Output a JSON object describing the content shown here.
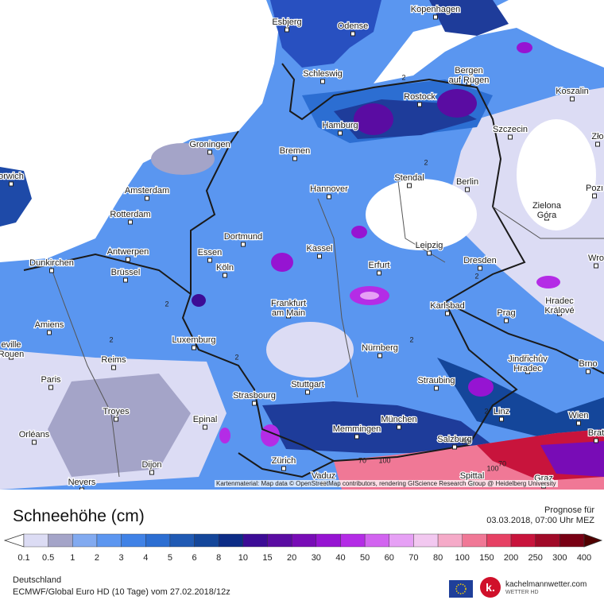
{
  "map": {
    "cities": [
      "Esbjerg",
      "Odense",
      "Kopenhagen",
      "Schleswig",
      [
        "Bergen",
        "auf Rügen"
      ],
      "Rostock",
      "Koszalin",
      "Hamburg",
      "Szczecin",
      "Zło",
      "Groningen",
      "Bremen",
      "orwich",
      "Amsterdam",
      "Hannover",
      "Stendal",
      "Berlin",
      "Pozı",
      "Rotterdam",
      [
        "Zielona",
        "Góra"
      ],
      "Dortmund",
      "Kassel",
      "Leipzig",
      "Antwerpen",
      "Essen",
      "Dunkirchen",
      "Wro",
      "Köln",
      "Erfurt",
      "Dresden",
      "Brüssel",
      [
        "Frankfurt",
        "am Main"
      ],
      "Karlsbad",
      [
        "Hradec",
        "Králové"
      ],
      "Amiens",
      "Prag",
      "Luxemburg",
      "Nürnberg",
      [
        "Jindřichův",
        "Hradec"
      ],
      "Brno",
      [
        "eville",
        "Rouen"
      ],
      "Reims",
      "Paris",
      "Stuttgart",
      "Straubing",
      "Strasbourg",
      "Troyes",
      "Epinal",
      "München",
      "Linz",
      "Wien",
      "Memmingen",
      "Brat",
      "Orléans",
      "Salzburg",
      "Zürich",
      "Dijon",
      "Vaduz",
      "Nevers",
      "Spittal",
      "Graz"
    ],
    "contour_labels": [
      "2",
      "2",
      "2",
      "2",
      "2",
      "2",
      "2",
      "2",
      "70",
      "100",
      "50",
      "100",
      "70"
    ],
    "attribution": "Kartenmaterial: Map data © OpenStreetMap contributors, rendering GIScience Research Group @ Heidelberg University"
  },
  "legend": {
    "title": "Schneehöhe (cm)",
    "forecast_label": "Prognose für",
    "forecast_time": "03.03.2018, 07:00 Uhr MEZ",
    "labels": [
      0.1,
      0.5,
      1,
      2,
      3,
      4,
      5,
      6,
      8,
      10,
      15,
      20,
      30,
      40,
      50,
      60,
      70,
      80,
      100,
      150,
      200,
      250,
      300,
      400
    ],
    "colors": [
      "#dcdcf4",
      "#a4a4c8",
      "#82aaf0",
      "#5c96f0",
      "#4082e6",
      "#2c6ed2",
      "#205ab4",
      "#14469a",
      "#0c2c86",
      "#3c0c96",
      "#5a0ca2",
      "#780cb6",
      "#9614d2",
      "#b42ce6",
      "#d264f0",
      "#e6a0f5",
      "#f2c8f0",
      "#f5aac8",
      "#f07896",
      "#e64164",
      "#c8143c",
      "#a00a28",
      "#780014"
    ],
    "overflow_color": "#500000"
  },
  "footer": {
    "region": "Deutschland",
    "model": "ECMWF/Global Euro HD (10 Tage) vom 27.02.2018/12z",
    "logo_mark": "k.",
    "logo_text": "kachelmannwetter.com",
    "logo_sub": "WETTER HD"
  }
}
